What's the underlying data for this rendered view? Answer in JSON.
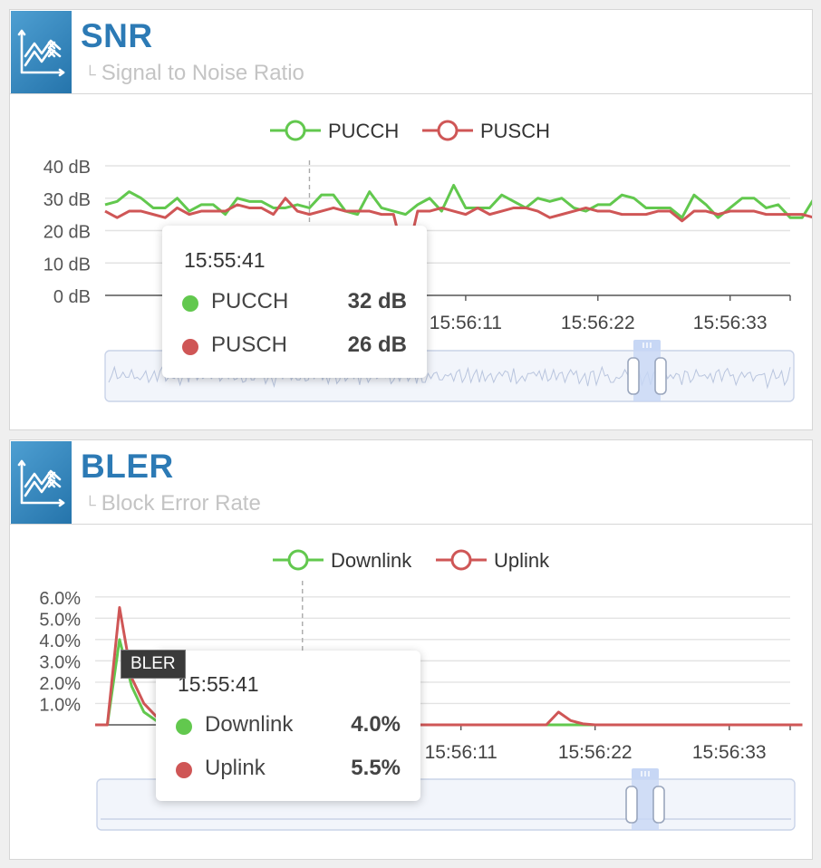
{
  "colors": {
    "green": "#62c84e",
    "red": "#cf5656",
    "accent": "#2c7ab5"
  },
  "icons": {
    "header_icon": "line-chart-icon"
  },
  "snr": {
    "title": "SNR",
    "subtitle": "Signal to Noise Ratio",
    "tooltip": {
      "time": "15:55:41",
      "rows": [
        {
          "name": "PUCCH",
          "value": "32 dB"
        },
        {
          "name": "PUSCH",
          "value": "26 dB"
        }
      ]
    }
  },
  "bler": {
    "title": "BLER",
    "subtitle": "Block Error Rate",
    "badge": "BLER",
    "tooltip": {
      "time": "15:55:41",
      "rows": [
        {
          "name": "Downlink",
          "value": "4.0%"
        },
        {
          "name": "Uplink",
          "value": "5.5%"
        }
      ]
    }
  },
  "chart_data": [
    {
      "type": "line",
      "legend_position": "top-center",
      "ylim": [
        0,
        40
      ],
      "yticks": [
        "0 dB",
        "10 dB",
        "20 dB",
        "30 dB",
        "40 dB"
      ],
      "ytick_values": [
        0,
        10,
        20,
        30,
        40
      ],
      "xlim": [
        0,
        57
      ],
      "xticks": [
        {
          "x": 30,
          "label": "15:56:11"
        },
        {
          "x": 41,
          "label": "15:56:22"
        },
        {
          "x": 52,
          "label": "15:56:33"
        }
      ],
      "hover_x": 17,
      "series": [
        {
          "name": "PUCCH",
          "color": "#62c84e",
          "values": [
            28,
            29,
            32,
            30,
            27,
            27,
            30,
            26,
            28,
            28,
            25,
            30,
            29,
            29,
            27,
            27,
            28,
            27,
            31,
            31,
            26,
            25,
            32,
            27,
            26,
            25,
            28,
            30,
            26,
            34,
            27,
            27,
            27,
            31,
            29,
            27,
            30,
            29,
            30,
            27,
            26,
            28,
            28,
            31,
            30,
            27,
            27,
            27,
            24,
            31,
            28,
            24,
            27,
            30,
            30,
            27,
            28,
            24,
            24,
            30
          ]
        },
        {
          "name": "PUSCH",
          "color": "#cf5656",
          "values": [
            26,
            24,
            26,
            26,
            25,
            24,
            27,
            25,
            26,
            26,
            26,
            28,
            27,
            27,
            25,
            30,
            26,
            25,
            26,
            27,
            26,
            26,
            26,
            25,
            25,
            10,
            26,
            26,
            27,
            26,
            25,
            27,
            25,
            26,
            27,
            27,
            26,
            24,
            25,
            26,
            27,
            26,
            26,
            25,
            25,
            25,
            26,
            26,
            23,
            26,
            26,
            25,
            26,
            26,
            26,
            25,
            25,
            25,
            25,
            24,
            26
          ]
        }
      ]
    },
    {
      "type": "line",
      "legend_position": "top-center",
      "ylim": [
        0,
        6.5
      ],
      "yticks": [
        "1.0%",
        "2.0%",
        "3.0%",
        "4.0%",
        "5.0%",
        "6.0%"
      ],
      "ytick_values": [
        1,
        2,
        3,
        4,
        5,
        6
      ],
      "xlim": [
        0,
        57
      ],
      "xticks": [
        {
          "x": 30,
          "label": "15:56:11"
        },
        {
          "x": 41,
          "label": "15:56:22"
        },
        {
          "x": 52,
          "label": "15:56:33"
        }
      ],
      "hover_x": 17,
      "series": [
        {
          "name": "Downlink",
          "color": "#62c84e",
          "values": [
            0,
            0,
            4.0,
            1.8,
            0.6,
            0.2,
            0.1,
            0,
            0,
            0,
            0,
            0,
            0,
            0,
            0,
            0,
            0,
            0,
            0,
            0,
            0,
            0,
            0,
            0,
            0,
            0,
            0,
            0,
            0,
            0,
            0,
            0,
            0,
            0,
            0,
            0,
            0,
            0,
            0,
            0,
            0,
            0,
            0,
            0,
            0,
            0,
            0,
            0,
            0,
            0,
            0,
            0,
            0,
            0,
            0,
            0,
            0,
            0,
            0
          ]
        },
        {
          "name": "Uplink",
          "color": "#cf5656",
          "values": [
            0,
            0,
            5.5,
            2.2,
            1.0,
            0.4,
            0.15,
            0.05,
            0,
            0,
            0,
            0,
            0,
            0,
            0,
            0,
            0,
            0,
            0,
            0,
            0,
            0,
            0,
            0,
            0,
            0,
            0,
            0,
            0,
            0,
            0,
            0,
            0,
            0,
            0,
            0,
            0,
            0,
            0.6,
            0.2,
            0.05,
            0,
            0,
            0,
            0,
            0,
            0,
            0,
            0,
            0,
            0,
            0,
            0,
            0,
            0,
            0,
            0,
            0,
            0
          ]
        }
      ]
    }
  ]
}
